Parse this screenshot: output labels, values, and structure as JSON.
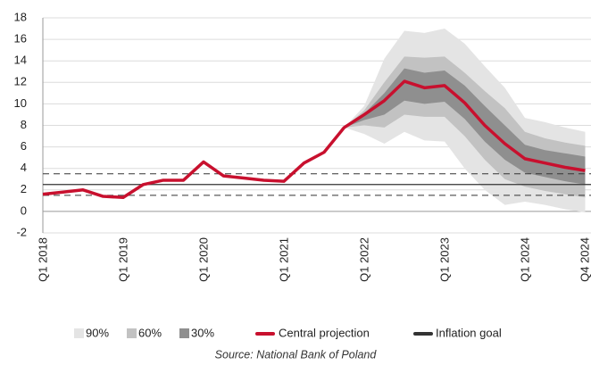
{
  "chart_data": {
    "type": "fan",
    "categories": [
      "Q1 2018",
      null,
      null,
      null,
      "Q1 2019",
      null,
      null,
      null,
      "Q1 2020",
      null,
      null,
      null,
      "Q1 2021",
      null,
      null,
      null,
      "Q1 2022",
      null,
      null,
      null,
      "Q1 2023",
      null,
      null,
      null,
      "Q1 2024",
      null,
      null,
      "Q4 2024"
    ],
    "ylim": [
      -2,
      18
    ],
    "yticks": [
      -2,
      0,
      2,
      4,
      6,
      8,
      10,
      12,
      14,
      16,
      18
    ],
    "grid": true,
    "series": [
      {
        "name": "Central projection",
        "color": "#c8102e",
        "values": [
          1.6,
          1.8,
          2.0,
          1.4,
          1.3,
          2.5,
          2.9,
          2.9,
          4.6,
          3.3,
          3.1,
          2.9,
          2.8,
          4.5,
          5.5,
          7.8,
          9.0,
          10.3,
          12.1,
          11.5,
          11.7,
          10.1,
          8.0,
          6.3,
          4.9,
          4.5,
          4.1,
          3.8
        ]
      }
    ],
    "bands": [
      {
        "name": "90%",
        "color": "#e4e4e4",
        "lower": [
          null,
          null,
          null,
          null,
          null,
          null,
          null,
          null,
          null,
          null,
          null,
          null,
          null,
          null,
          null,
          7.8,
          7.2,
          6.3,
          7.4,
          6.6,
          6.5,
          4.0,
          2.0,
          0.6,
          0.9,
          0.6,
          0.2,
          -0.1
        ],
        "upper": [
          null,
          null,
          null,
          null,
          null,
          null,
          null,
          null,
          null,
          null,
          null,
          null,
          null,
          null,
          null,
          7.8,
          9.8,
          14.2,
          16.8,
          16.6,
          17.0,
          15.6,
          13.5,
          11.5,
          8.7,
          8.3,
          7.8,
          7.4
        ]
      },
      {
        "name": "60%",
        "color": "#c2c2c2",
        "lower": [
          null,
          null,
          null,
          null,
          null,
          null,
          null,
          null,
          null,
          null,
          null,
          null,
          null,
          null,
          null,
          7.8,
          8.0,
          7.8,
          9.0,
          8.8,
          8.8,
          7.0,
          4.8,
          3.0,
          2.3,
          1.9,
          1.6,
          1.3
        ],
        "upper": [
          null,
          null,
          null,
          null,
          null,
          null,
          null,
          null,
          null,
          null,
          null,
          null,
          null,
          null,
          null,
          7.8,
          9.4,
          12.0,
          14.4,
          14.3,
          14.4,
          12.9,
          11.2,
          9.6,
          7.4,
          6.8,
          6.4,
          6.1
        ]
      },
      {
        "name": "30%",
        "color": "#8f8f8f",
        "lower": [
          null,
          null,
          null,
          null,
          null,
          null,
          null,
          null,
          null,
          null,
          null,
          null,
          null,
          null,
          null,
          7.8,
          8.5,
          9.0,
          10.3,
          10.0,
          10.2,
          8.6,
          6.5,
          4.8,
          3.6,
          3.2,
          2.8,
          2.5
        ],
        "upper": [
          null,
          null,
          null,
          null,
          null,
          null,
          null,
          null,
          null,
          null,
          null,
          null,
          null,
          null,
          null,
          7.8,
          9.1,
          11.0,
          13.3,
          12.9,
          13.1,
          11.7,
          9.8,
          8.0,
          6.2,
          5.7,
          5.4,
          5.1
        ]
      }
    ],
    "goal": {
      "name": "Inflation goal",
      "color": "#333333",
      "value": 2.5
    },
    "tolerance": [
      1.5,
      3.5
    ],
    "source": "Source: National Bank of Poland"
  }
}
